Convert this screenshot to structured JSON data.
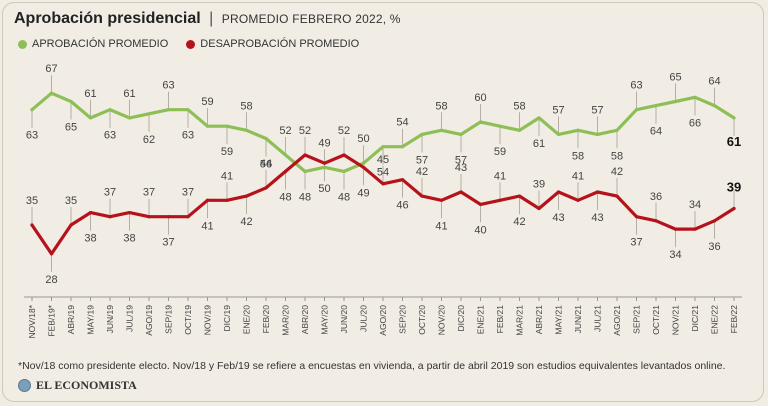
{
  "header": {
    "title": "Aprobación presidencial",
    "separator": "|",
    "subtitle": "PROMEDIO FEBRERO 2022, %"
  },
  "legend": {
    "approval": "APROBACIÓN PROMEDIO",
    "disapproval": "DESAPROBACIÓN PROMEDIO"
  },
  "colors": {
    "approval": "#8dbf56",
    "disapproval": "#b5121b",
    "background": "#f1ece4",
    "text": "#333333"
  },
  "chart_data": {
    "type": "line",
    "title": "Aprobación presidencial",
    "subtitle": "PROMEDIO FEBRERO 2022, %",
    "categories": [
      "NOV/18*",
      "FEB/19*",
      "ABR/19",
      "MAY/19",
      "JUN/19",
      "JUL/19",
      "AGO/19",
      "SEP/19",
      "OCT/19",
      "NOV/19",
      "DIC/19",
      "ENE/20",
      "FEB/20",
      "MAR/20",
      "ABR/20",
      "MAY/20",
      "JUN/20",
      "JUL/20",
      "AGO/20",
      "SEP/20",
      "OCT/20",
      "NOV/20",
      "DIC/20",
      "ENE/21",
      "FEB/21",
      "MAR/21",
      "ABR/21",
      "MAY/21",
      "JUN/21",
      "JUL/21",
      "AGO/21",
      "SEP/21",
      "OCT/21",
      "NOV/21",
      "DIC/21",
      "ENE/22",
      "FEB/22"
    ],
    "series": [
      {
        "name": "APROBACIÓN PROMEDIO",
        "values": [
          63,
          67,
          65,
          61,
          63,
          61,
          62,
          63,
          63,
          59,
          59,
          58,
          56,
          52,
          48,
          49,
          48,
          50,
          54,
          54,
          57,
          58,
          57,
          60,
          59,
          58,
          61,
          57,
          58,
          57,
          58,
          63,
          64,
          65,
          66,
          64,
          61
        ]
      },
      {
        "name": "DESAPROBACIÓN PROMEDIO",
        "values": [
          35,
          28,
          35,
          38,
          37,
          38,
          37,
          37,
          37,
          41,
          41,
          42,
          44,
          48,
          52,
          50,
          52,
          49,
          45,
          46,
          42,
          41,
          43,
          40,
          41,
          42,
          39,
          43,
          41,
          43,
          42,
          37,
          36,
          34,
          34,
          36,
          39
        ]
      }
    ],
    "xlabel": "",
    "ylabel": "%",
    "ylim": [
      26,
      69
    ],
    "grid": false,
    "legend": "top-left"
  },
  "footnote": "*Nov/18 como presidente electo. Nov/18 y Feb/19 se refiere a encuestas en vivienda, a partir de abril 2019 son estudios equivalentes levantados online.",
  "brand": "EL ECONOMISTA"
}
